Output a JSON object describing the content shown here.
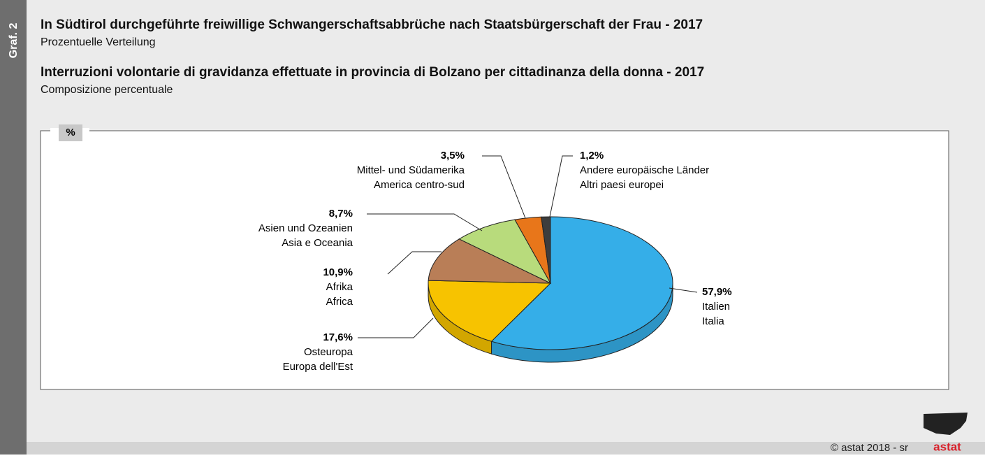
{
  "side_label": "Graf. 2",
  "footer": "© astat 2018 - sr",
  "logo": "astat",
  "chart_data": {
    "type": "pie",
    "title": "In Südtirol durchgeführte freiwillige Schwangerschaftsabbrüche nach Staatsbürgerschaft der Frau - 2017",
    "subtitle": "Prozentuelle Verteilung",
    "title_it": "Interruzioni volontarie di gravidanza effettuate in provincia di Bolzano per cittadinanza della donna -  2017",
    "subtitle_it": "Composizione percentuale",
    "unit": "%",
    "categories": [
      "Italien",
      "Osteuropa",
      "Afrika",
      "Asien und Ozeanien",
      "Mittel- und Südamerika",
      "Andere europäische Länder"
    ],
    "categories_it": [
      "Italia",
      "Europa dell'Est",
      "Africa",
      "Asia e Oceania",
      "America centro-sud",
      "Altri paesi europei"
    ],
    "values": [
      57.9,
      17.6,
      10.9,
      8.7,
      3.5,
      1.2
    ],
    "value_labels": [
      "57,9%",
      "17,6%",
      "10,9%",
      "8,7%",
      "3,5%",
      "1,2%"
    ],
    "colors": [
      "#35aee8",
      "#f7c300",
      "#b97e57",
      "#b8db7c",
      "#e8761a",
      "#3d3d3d"
    ]
  }
}
